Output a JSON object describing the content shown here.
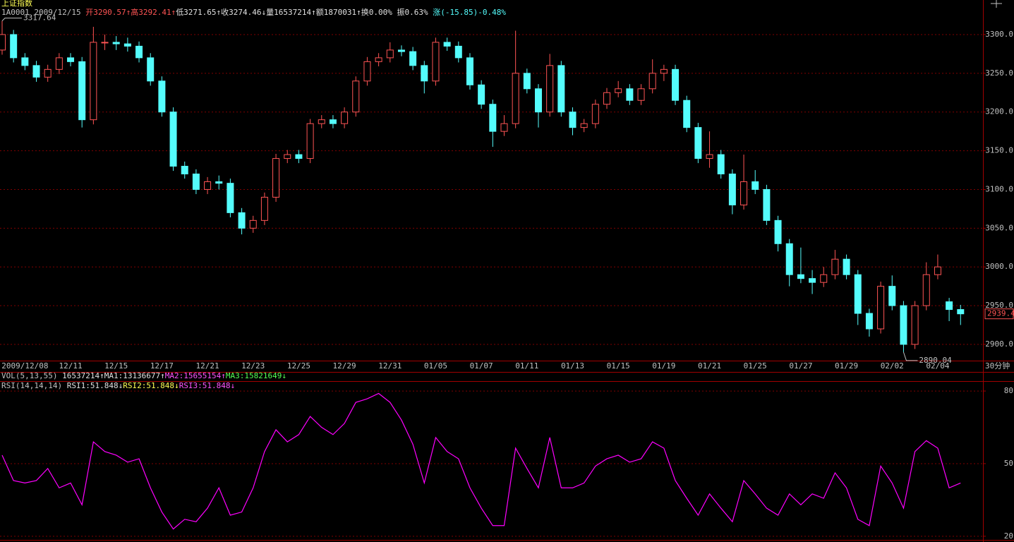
{
  "header": {
    "title": "上证指数",
    "info": [
      {
        "text": "1A0001 2009/12/15 ",
        "color": "#c0c0c0"
      },
      {
        "text": "开3290.57↑",
        "color": "#ff5454"
      },
      {
        "text": "高3292.41↑",
        "color": "#ff5454"
      },
      {
        "text": "低3271.65↑",
        "color": "#e0e0e0"
      },
      {
        "text": "收3274.46↓",
        "color": "#e0e0e0"
      },
      {
        "text": "量16537214↑",
        "color": "#e0e0e0"
      },
      {
        "text": "额1870031↑",
        "color": "#e0e0e0"
      },
      {
        "text": "换0.00% ",
        "color": "#e0e0e0"
      },
      {
        "text": "振0.63% ",
        "color": "#e0e0e0"
      },
      {
        "text": "涨(-15.85)-0.48%",
        "color": "#54fcfc"
      }
    ],
    "vol_info": [
      {
        "text": "VOL(5,13,55) ",
        "color": "#c0c0c0"
      },
      {
        "text": "16537214↑",
        "color": "#e0e0e0"
      },
      {
        "text": "MA1:13136677↑",
        "color": "#e0e0e0"
      },
      {
        "text": "MA2:15655154↑",
        "color": "#ff54ff"
      },
      {
        "text": "MA3:15821649↓",
        "color": "#54ff54"
      }
    ],
    "rsi_info": [
      {
        "text": "RSI(14,14,14) ",
        "color": "#c0c0c0"
      },
      {
        "text": "RSI1:51.848↓",
        "color": "#e0e0e0"
      },
      {
        "text": "RSI2:51.848↓",
        "color": "#ffff54"
      },
      {
        "text": "RSI3:51.848↓",
        "color": "#ff54ff"
      }
    ]
  },
  "chart_data": [
    {
      "type": "candlestick",
      "period": "30分钟",
      "up_color": "#ff5454",
      "down_color": "#54fcfc",
      "grid": true,
      "categories": [
        null,
        null,
        "2009/12/08",
        null,
        null,
        null,
        "12/11",
        null,
        null,
        null,
        "12/15",
        null,
        null,
        null,
        "12/17",
        null,
        null,
        null,
        "12/21",
        null,
        null,
        null,
        "12/23",
        null,
        null,
        null,
        "12/25",
        null,
        null,
        null,
        "12/29",
        null,
        null,
        null,
        "12/31",
        null,
        null,
        null,
        "01/05",
        null,
        null,
        null,
        "01/07",
        null,
        null,
        null,
        "01/11",
        null,
        null,
        null,
        "01/13",
        null,
        null,
        null,
        "01/15",
        null,
        null,
        null,
        "01/19",
        null,
        null,
        null,
        "01/21",
        null,
        null,
        null,
        "01/25",
        null,
        null,
        null,
        "01/27",
        null,
        null,
        null,
        "01/29",
        null,
        null,
        null,
        "02/02",
        null,
        null,
        null,
        "02/04",
        null,
        null
      ],
      "open": [
        3280,
        3300,
        3270,
        3260,
        3245,
        3255,
        3270,
        3265,
        3190,
        3290,
        3290,
        3288,
        3285,
        3270,
        3240,
        3200,
        3130,
        3120,
        3100,
        3110,
        3108,
        3070,
        3050,
        3060,
        3090,
        3140,
        3145,
        3140,
        3185,
        3190,
        3185,
        3200,
        3240,
        3265,
        3270,
        3280,
        3278,
        3260,
        3240,
        3290,
        3285,
        3270,
        3235,
        3210,
        3175,
        3185,
        3250,
        3230,
        3200,
        3260,
        3200,
        3180,
        3185,
        3210,
        3225,
        3230,
        3215,
        3230,
        3250,
        3255,
        3215,
        3180,
        3140,
        3145,
        3120,
        3080,
        3110,
        3100,
        3060,
        3030,
        2990,
        2985,
        2980,
        2990,
        3010,
        2990,
        2940,
        2920,
        2975,
        2950,
        2900,
        2950,
        2990,
        2955,
        2945
      ],
      "high": [
        3317.64,
        3306,
        3276,
        3266,
        3261,
        3276,
        3276,
        3271,
        3310,
        3300,
        3298,
        3296,
        3291,
        3276,
        3246,
        3206,
        3136,
        3126,
        3116,
        3118,
        3114,
        3076,
        3066,
        3096,
        3146,
        3151,
        3151,
        3191,
        3196,
        3196,
        3206,
        3246,
        3271,
        3276,
        3290,
        3286,
        3284,
        3266,
        3296,
        3296,
        3291,
        3276,
        3241,
        3216,
        3196,
        3305,
        3256,
        3236,
        3275,
        3266,
        3206,
        3191,
        3216,
        3231,
        3240,
        3236,
        3236,
        3268,
        3261,
        3261,
        3221,
        3186,
        3175,
        3151,
        3126,
        3145,
        3125,
        3106,
        3066,
        3036,
        3025,
        2996,
        3000,
        3022,
        3016,
        2996,
        2946,
        2981,
        2989,
        2956,
        2956,
        3006,
        3016,
        2960,
        2951
      ],
      "low": [
        3274,
        3264,
        3254,
        3239,
        3239,
        3249,
        3259,
        3180,
        3184,
        3280,
        3280,
        3278,
        3264,
        3234,
        3194,
        3124,
        3114,
        3094,
        3094,
        3100,
        3064,
        3042,
        3044,
        3054,
        3084,
        3134,
        3134,
        3134,
        3179,
        3179,
        3179,
        3194,
        3234,
        3259,
        3264,
        3272,
        3254,
        3224,
        3234,
        3279,
        3264,
        3229,
        3204,
        3155,
        3169,
        3179,
        3224,
        3180,
        3194,
        3194,
        3170,
        3174,
        3179,
        3204,
        3219,
        3209,
        3209,
        3224,
        3240,
        3209,
        3174,
        3134,
        3128,
        3114,
        3068,
        3074,
        3094,
        3054,
        3020,
        2975,
        2979,
        2965,
        2974,
        2984,
        2984,
        2925,
        2910,
        2914,
        2944,
        2890.04,
        2894,
        2944,
        2984,
        2930,
        2925
      ],
      "close": [
        3300,
        3270,
        3260,
        3245,
        3255,
        3270,
        3265,
        3190,
        3290,
        3290,
        3288,
        3285,
        3270,
        3240,
        3200,
        3130,
        3120,
        3100,
        3110,
        3108,
        3070,
        3050,
        3060,
        3090,
        3140,
        3145,
        3140,
        3185,
        3190,
        3185,
        3200,
        3240,
        3265,
        3270,
        3280,
        3278,
        3260,
        3240,
        3290,
        3285,
        3270,
        3235,
        3210,
        3175,
        3185,
        3250,
        3230,
        3200,
        3260,
        3200,
        3180,
        3185,
        3210,
        3225,
        3230,
        3215,
        3230,
        3250,
        3255,
        3215,
        3180,
        3140,
        3145,
        3120,
        3080,
        3110,
        3100,
        3060,
        3030,
        2990,
        2985,
        2980,
        2990,
        3010,
        2990,
        2940,
        2920,
        2975,
        2950,
        2900,
        2950,
        2990,
        3000,
        2945,
        2939.4
      ],
      "ylim": [
        2879,
        3344.6
      ],
      "yticks": [
        {
          "value": 3300,
          "label": "3300.0"
        },
        {
          "value": 3250,
          "label": "3250.0"
        },
        {
          "value": 3200,
          "label": "3200.0"
        },
        {
          "value": 3150,
          "label": "3150.0"
        },
        {
          "value": 3100,
          "label": "3100.0"
        },
        {
          "value": 3050,
          "label": "3050.0"
        },
        {
          "value": 3000,
          "label": "3000.0"
        },
        {
          "value": 2950,
          "label": "2950.0"
        },
        {
          "value": 2900,
          "label": "2900.0"
        }
      ]
    },
    {
      "type": "line",
      "color": "#ff00ff",
      "grid": true,
      "values": [
        53.5,
        43,
        42,
        43,
        48,
        40,
        42,
        33,
        59,
        55,
        53.5,
        50.6,
        52,
        40,
        30,
        23,
        27,
        26,
        31.6,
        40,
        28.7,
        30,
        40,
        55,
        64,
        59,
        62,
        69.5,
        65,
        62,
        66.6,
        75.3,
        76.8,
        79,
        75.3,
        68,
        58,
        42,
        60.8,
        55,
        52,
        40,
        31.6,
        24.4,
        24.4,
        56.4,
        48,
        40,
        60.8,
        40,
        40,
        42,
        49,
        52,
        53.5,
        50.6,
        52,
        59,
        56.4,
        43,
        35.7,
        28.7,
        37.5,
        31.6,
        26,
        43,
        37.5,
        31.6,
        28.7,
        37.5,
        33,
        37.5,
        35.7,
        46.2,
        40,
        27,
        24.4,
        49,
        42,
        31.6,
        55,
        59.5,
        56.4,
        40,
        42
      ],
      "ylim": [
        18.5,
        84.1
      ],
      "yticks": [
        20,
        50,
        80
      ]
    }
  ]
}
